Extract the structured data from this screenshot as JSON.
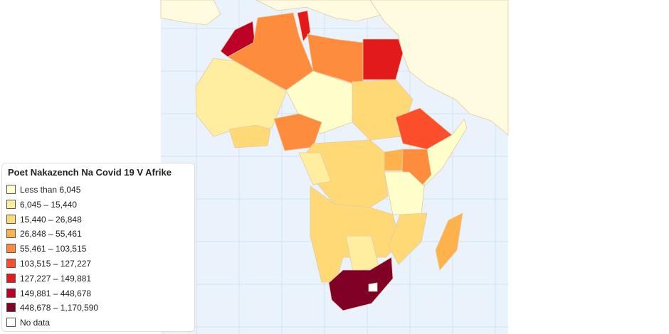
{
  "legend": {
    "title": "Poet Nakazench Na Covid 19 V Afrike",
    "items": [
      {
        "label": "Less than 6,045",
        "color": "#ffffcc"
      },
      {
        "label": "6,045 – 15,440",
        "color": "#ffeda0"
      },
      {
        "label": "15,440 – 26,848",
        "color": "#fed976"
      },
      {
        "label": "26,848 – 55,461",
        "color": "#feb24c"
      },
      {
        "label": "55,461 – 103,515",
        "color": "#fd8d3c"
      },
      {
        "label": "103,515 – 127,227",
        "color": "#fc4e2a"
      },
      {
        "label": "127,227 – 149,881",
        "color": "#e31a1c"
      },
      {
        "label": "149,881 – 448,678",
        "color": "#bd0026"
      },
      {
        "label": "448,678 – 1,170,590",
        "color": "#800026"
      },
      {
        "label": "No data",
        "color": "#ffffff"
      }
    ]
  }
}
